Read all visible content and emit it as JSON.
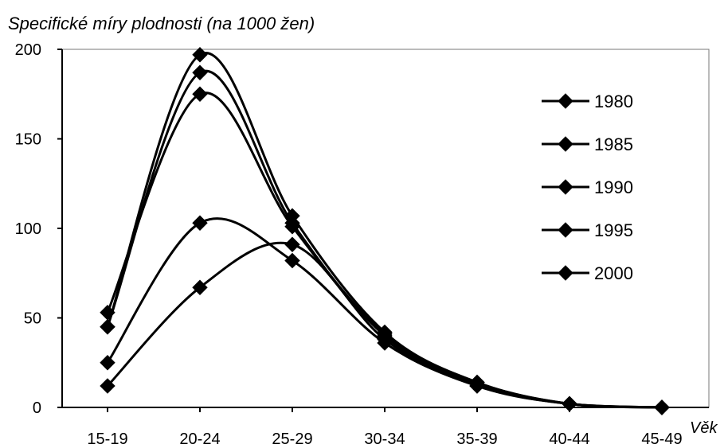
{
  "chart_data": {
    "type": "line",
    "title": "Specifické míry plodnosti (na 1000 žen)",
    "xlabel": "Věk",
    "ylabel": "",
    "categories": [
      "15-19",
      "20-24",
      "25-29",
      "30-34",
      "35-39",
      "40-44",
      "45-49"
    ],
    "ylim": [
      0,
      200
    ],
    "yticks": [
      0,
      50,
      100,
      150,
      200
    ],
    "grid": false,
    "legend": "right",
    "series": [
      {
        "name": "1980",
        "values": [
          53,
          175,
          101,
          41,
          14,
          2,
          0
        ]
      },
      {
        "name": "1985",
        "values": [
          45,
          187,
          103,
          40,
          13,
          2,
          0
        ]
      },
      {
        "name": "1990",
        "values": [
          45,
          197,
          107,
          42,
          14,
          2,
          0
        ]
      },
      {
        "name": "1995",
        "values": [
          25,
          103,
          82,
          36,
          12,
          2,
          0
        ]
      },
      {
        "name": "2000",
        "values": [
          12,
          67,
          91,
          38,
          12,
          2,
          0
        ]
      }
    ],
    "colors": {
      "line": "#000000",
      "background": "#ffffff"
    }
  }
}
